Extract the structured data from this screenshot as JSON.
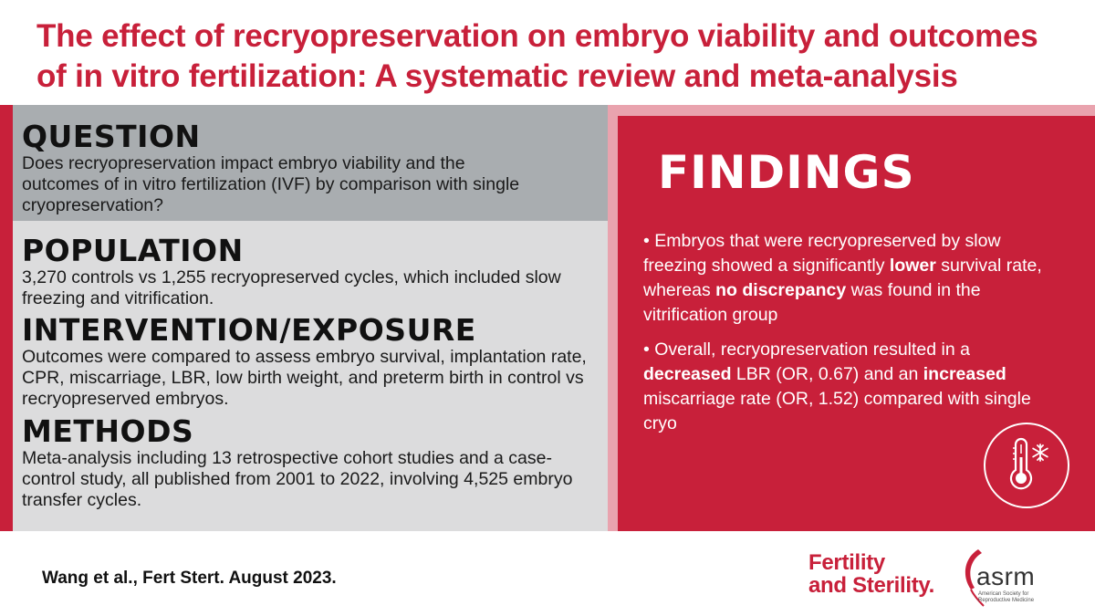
{
  "title_line1": "The effect of recryopreservation on embryo viability and outcomes",
  "title_line2": "of in vitro fertilization: A systematic review and meta-analysis",
  "question": {
    "heading": "QUESTION",
    "text": "Does recryopreservation impact embryo viability and the outcomes of in vitro fertilization (IVF) by comparison with single cryopreservation?"
  },
  "population": {
    "heading": "POPULATION",
    "text": "3,270 controls vs 1,255 recryopreserved cycles, which included slow freezing and vitrification."
  },
  "intervention": {
    "heading": "INTERVENTION/EXPOSURE",
    "text": "Outcomes were compared to assess embryo survival, implantation rate, CPR, miscarriage, LBR, low birth weight, and preterm birth in control vs recryopreserved embryos."
  },
  "methods": {
    "heading": "METHODS",
    "text": "Meta-analysis including 13 retrospective cohort studies and a case-control study, all published from 2001 to 2022, involving 4,525 embryo transfer cycles."
  },
  "findings": {
    "heading": "FINDINGS",
    "item1": {
      "p1": "• Embryos that were recryopreserved by slow freezing showed a significantly ",
      "b1": "lower",
      "p2": " survival rate, whereas ",
      "b2": "no discrepancy",
      "p3": " was found in the vitrification group"
    },
    "item2": {
      "p1": "• Overall, recryopreservation resulted in a ",
      "b1": "decreased",
      "p2": " LBR (OR, 0.67) and an ",
      "b2": "increased",
      "p3": " miscarriage rate (OR, 1.52) compared with single cryo"
    },
    "icon": "thermometer-snowflake-icon"
  },
  "citation": "Wang et al., Fert Stert. August 2023.",
  "logo_fs_line1": "Fertility",
  "logo_fs_line2": "and Sterility.",
  "logo_asrm": "asrm",
  "logo_asrm_sub": "American Society for Reproductive Medicine",
  "colors": {
    "accent": "#c8203a",
    "question_bg": "#a9adb0",
    "section_bg": "#dcdcdd",
    "findings_border": "#e9a3ae"
  }
}
